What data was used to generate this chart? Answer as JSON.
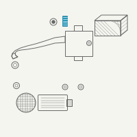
{
  "bg_color": "#f5f5f0",
  "line_color": "#666666",
  "highlight_color": "#2299bb",
  "fig_width": 2.0,
  "fig_height": 2.0,
  "dpi": 100
}
